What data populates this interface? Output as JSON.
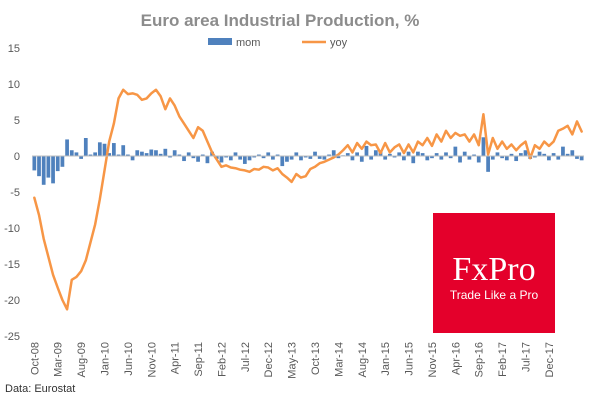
{
  "chart_data": {
    "type": "bar+line",
    "title": "Euro area Industrial Production, %",
    "ylim": [
      -25,
      15
    ],
    "yticks": [
      15,
      10,
      5,
      0,
      -5,
      -10,
      -15,
      -20,
      -25
    ],
    "xtick_labels": [
      "Oct-08",
      "Mar-09",
      "Aug-09",
      "Jan-10",
      "Jun-10",
      "Nov-10",
      "Apr-11",
      "Sep-11",
      "Feb-12",
      "Jul-12",
      "Dec-12",
      "May-13",
      "Oct-13",
      "Mar-14",
      "Aug-14",
      "Jan-15",
      "Jun-15",
      "Nov-15",
      "Apr-16",
      "Sep-16",
      "Feb-17",
      "Jul-17",
      "Dec-17"
    ],
    "legend": {
      "placement": "top",
      "entries": [
        "mom",
        "yoy"
      ]
    },
    "grid": false,
    "months": 118,
    "series": [
      {
        "name": "mom",
        "type": "bar",
        "color": "#4f81bd",
        "values": [
          -2.0,
          -2.8,
          -4.0,
          -3.0,
          -3.8,
          -2.1,
          -1.5,
          2.3,
          0.8,
          0.5,
          -0.4,
          2.5,
          0.2,
          0.5,
          1.9,
          1.7,
          0.4,
          1.8,
          0.2,
          1.5,
          0.2,
          -0.6,
          0.8,
          0.6,
          0.4,
          0.9,
          0.8,
          0.3,
          1.0,
          -0.2,
          0.8,
          0.2,
          -0.7,
          0.5,
          -0.3,
          -0.8,
          0.2,
          -1.0,
          0.6,
          -0.4,
          -0.9,
          -0.2,
          -0.6,
          0.5,
          -0.5,
          -1.1,
          -0.6,
          -0.2,
          0.2,
          -0.3,
          0.5,
          -0.5,
          0.2,
          -1.4,
          -0.8,
          -0.5,
          0.5,
          -0.6,
          -0.2,
          -0.4,
          0.6,
          -0.4,
          -0.5,
          0.2,
          0.8,
          -0.3,
          0.1,
          0.4,
          -0.6,
          0.5,
          -0.8,
          1.4,
          -0.5,
          0.8,
          0.7,
          -0.5,
          0.3,
          -0.2,
          0.5,
          -0.6,
          0.6,
          -1.0,
          0.6,
          0.4,
          -0.6,
          -0.3,
          0.4,
          -0.5,
          0.5,
          -0.3,
          1.3,
          -0.9,
          0.6,
          -0.5,
          0.2,
          -0.9,
          2.6,
          -2.2,
          -0.5,
          0.5,
          -0.3,
          -0.6,
          0.3,
          -0.7,
          0.4,
          0.8,
          -0.4,
          -0.2,
          0.6,
          0.3,
          -0.6,
          0.4,
          -0.5,
          1.3,
          0.3,
          0.8,
          -0.4,
          -0.6
        ]
      },
      {
        "name": "yoy",
        "type": "line",
        "color": "#f79646",
        "values": [
          -5.8,
          -8.2,
          -11.5,
          -14.0,
          -16.5,
          -18.3,
          -20.0,
          -21.3,
          -17.2,
          -16.8,
          -16.0,
          -14.5,
          -12.0,
          -9.5,
          -6.0,
          -2.0,
          2.0,
          4.5,
          8.0,
          9.2,
          8.6,
          8.7,
          8.5,
          7.8,
          8.0,
          8.7,
          9.2,
          8.3,
          6.5,
          8.0,
          7.0,
          5.5,
          4.5,
          3.5,
          2.5,
          4.0,
          3.5,
          2.0,
          0.5,
          -0.5,
          -1.5,
          -1.3,
          -1.6,
          -1.7,
          -1.9,
          -2.0,
          -2.2,
          -1.8,
          -1.9,
          -1.5,
          -1.6,
          -2.0,
          -1.7,
          -2.5,
          -3.0,
          -3.6,
          -2.5,
          -3.0,
          -2.8,
          -1.8,
          -1.5,
          -1.0,
          -0.8,
          -0.5,
          -0.2,
          0.2,
          0.8,
          1.5,
          0.5,
          1.8,
          1.0,
          2.0,
          1.5,
          1.6,
          0.4,
          1.8,
          0.5,
          1.2,
          1.6,
          0.4,
          1.6,
          0.5,
          2.0,
          1.5,
          2.5,
          1.4,
          3.0,
          2.0,
          3.5,
          2.5,
          3.2,
          2.8,
          3.0,
          2.0,
          3.0,
          1.5,
          5.8,
          0.2,
          2.5,
          1.0,
          2.0,
          1.0,
          1.6,
          0.8,
          1.5,
          2.0,
          -0.3,
          1.5,
          1.0,
          2.0,
          1.4,
          2.0,
          3.5,
          3.8,
          4.2,
          3.0,
          4.8,
          3.4
        ]
      }
    ],
    "source_note": "Data: Eurostat"
  },
  "logo": {
    "name": "FxPro",
    "tagline": "Trade Like a Pro",
    "color": "#e4002b"
  }
}
